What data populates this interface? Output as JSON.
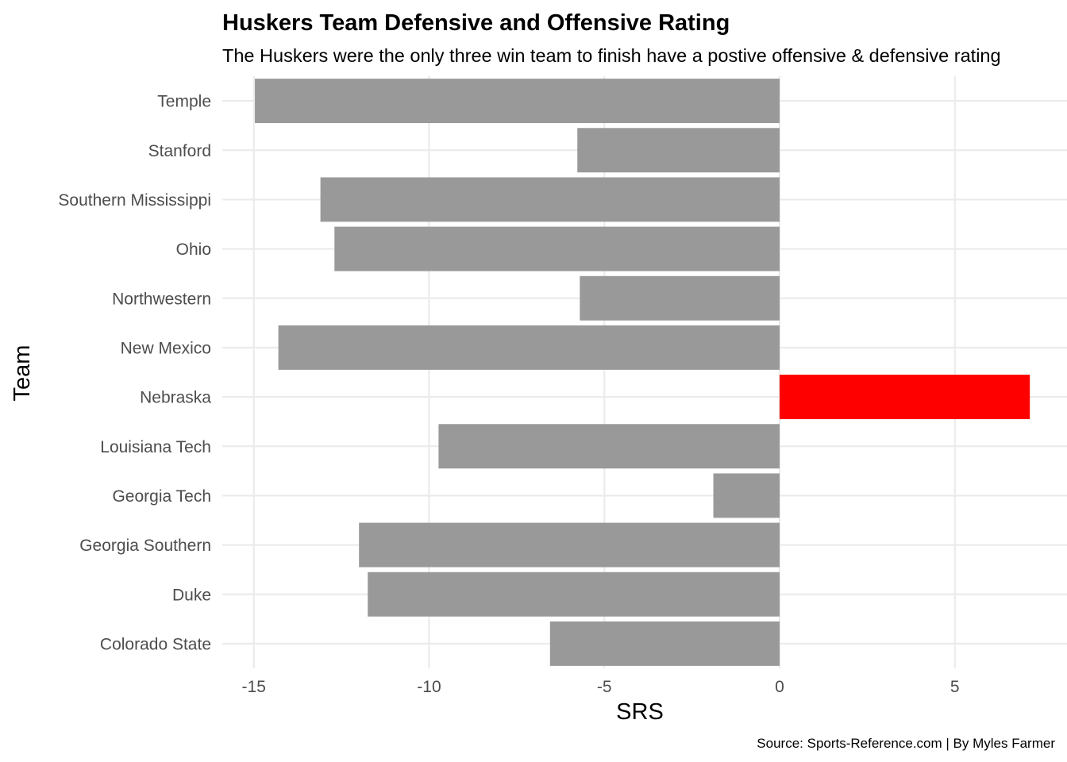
{
  "chart_data": {
    "type": "bar",
    "orientation": "horizontal",
    "title": "Huskers Team Defensive and Offensive Rating",
    "subtitle": "The Huskers were the only three win team to finish have a postive offensive & defensive rating",
    "xlabel": "SRS",
    "ylabel": "Team",
    "caption": "Source: Sports-Reference.com | By Myles Farmer",
    "categories": [
      "Temple",
      "Stanford",
      "Southern Mississippi",
      "Ohio",
      "Northwestern",
      "New Mexico",
      "Nebraska",
      "Louisiana Tech",
      "Georgia Tech",
      "Georgia Southern",
      "Duke",
      "Colorado State"
    ],
    "values": [
      -14.97,
      -5.77,
      -13.1,
      -12.7,
      -5.7,
      -14.3,
      7.14,
      -9.73,
      -1.89,
      -12.0,
      -11.75,
      -6.55
    ],
    "highlight": "Nebraska",
    "xlim": [
      -15.9,
      8.2
    ],
    "xticks": [
      -15,
      -10,
      -5,
      0,
      5
    ],
    "grid": true,
    "legend": "none",
    "colors": {
      "default": "#999999",
      "highlight": "#ff0000",
      "grid": "#ebebeb"
    }
  }
}
